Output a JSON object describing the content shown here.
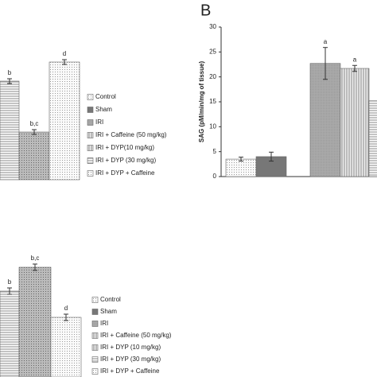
{
  "chart_data": [
    {
      "type": "bar",
      "ylim": [
        0,
        150
      ],
      "values": [
        124,
        60,
        148
      ],
      "errors": [
        3,
        3,
        3
      ],
      "annotations": [
        "b",
        "b,c",
        "d"
      ],
      "legend": [
        "Control",
        "Sham",
        "IRI",
        "IRI + Caffeine (50 mg/kg)",
        "IRI + DYP(10 mg/kg)",
        "IRI + DYP (30 mg/kg)",
        "IRI + DYP + Caffeine"
      ]
    },
    {
      "type": "bar",
      "panel": "B",
      "ylabel": "SAG (pM/min/mg of tissue)",
      "ylim": [
        0,
        30
      ],
      "yticks": [
        0,
        5,
        10,
        15,
        20,
        25,
        30
      ],
      "values": [
        3.5,
        4,
        22.7,
        21.7,
        15.2
      ],
      "errors": [
        0.4,
        0.9,
        3.2,
        0.6,
        null
      ],
      "annotations": [
        null,
        null,
        "a",
        "a",
        null
      ]
    },
    {
      "type": "bar",
      "ylim": [
        0,
        150
      ],
      "values": [
        108,
        138,
        75
      ],
      "errors": [
        4,
        4,
        4
      ],
      "annotations": [
        "b",
        "b,c",
        "d"
      ],
      "legend": [
        "Control",
        "Sham",
        "IRI",
        "IRI + Caffeine (50 mg/kg)",
        "IRI + DYP (10 mg/kg)",
        "IRI + DYP (30 mg/kg)",
        "IRI + DYP + Caffeine"
      ]
    }
  ]
}
